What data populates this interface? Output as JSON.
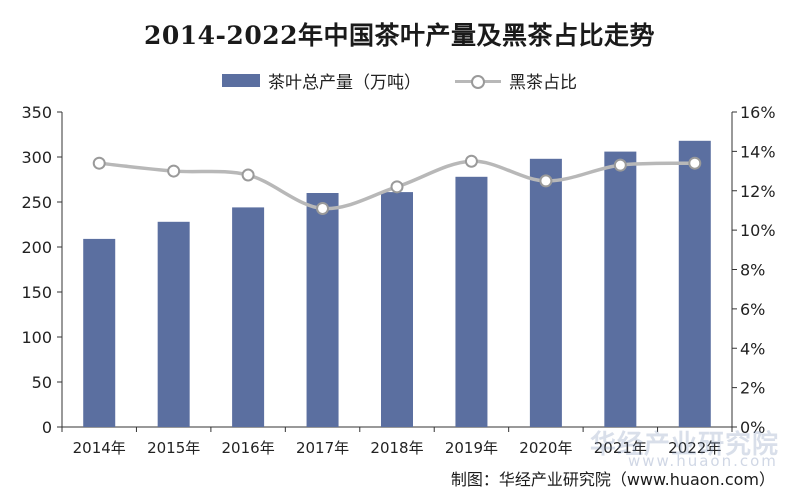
{
  "chart_data": {
    "type": "bar",
    "title": "2014-2022年中国茶叶产量及黑茶占比走势",
    "categories": [
      "2014年",
      "2015年",
      "2016年",
      "2017年",
      "2018年",
      "2019年",
      "2020年",
      "2021年",
      "2022年"
    ],
    "series": [
      {
        "name": "茶叶总产量（万吨）",
        "type": "bar",
        "axis": "left",
        "values": [
          209,
          228,
          244,
          260,
          261,
          278,
          298,
          306,
          318
        ]
      },
      {
        "name": "黑茶占比",
        "type": "line",
        "axis": "right",
        "values": [
          13.4,
          13.0,
          12.8,
          11.1,
          12.2,
          13.5,
          12.5,
          13.3,
          13.4
        ]
      }
    ],
    "y_left": {
      "min": 0,
      "max": 350,
      "ticks": [
        "0",
        "50",
        "100",
        "150",
        "200",
        "250",
        "300",
        "350"
      ]
    },
    "y_right": {
      "min": 0,
      "max": 16,
      "ticks": [
        "0%",
        "2%",
        "4%",
        "6%",
        "8%",
        "10%",
        "12%",
        "14%",
        "16%"
      ]
    },
    "legend_position": "top-center",
    "grid": false,
    "colors": {
      "bar": "#5b6fa0",
      "line": "#b8b8b8",
      "marker_edge": "#9a9a9a"
    }
  },
  "source_text": "制图：华经产业研究院（www.huaon.com）",
  "watermark": {
    "name": "华经产业研究院",
    "url": "www.huaon.com"
  }
}
